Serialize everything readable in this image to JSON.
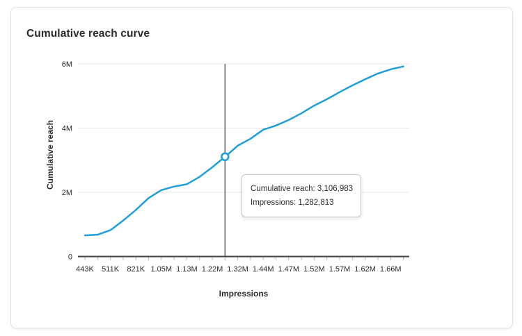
{
  "card": {
    "title": "Cumulative reach curve"
  },
  "tooltip": {
    "lines": [
      "Cumulative reach: 3,106,983",
      "Impressions: 1,282,813"
    ]
  },
  "colors": {
    "line": "#1f9ed9",
    "marker_fill": "#ffffff",
    "crosshair": "#58585b",
    "axis": "#404040",
    "gridline": "#e8e8e8",
    "tick_mark": "#bdbdbd",
    "text": "#2b2b2b",
    "card_border": "#e2e2e2",
    "tooltip_border": "#c9c9c9"
  },
  "chart_data": {
    "type": "line",
    "title": "Cumulative reach curve",
    "xlabel": "Impressions",
    "ylabel": "Cumulative reach",
    "x_tick_labels": [
      "443K",
      "511K",
      "821K",
      "1.05M",
      "1.13M",
      "1.22M",
      "1.32M",
      "1.44M",
      "1.47M",
      "1.52M",
      "1.57M",
      "1.62M",
      "1.66M"
    ],
    "x_labels_at_even_point_indices": true,
    "y_tick_labels": [
      "0",
      "2M",
      "4M",
      "6M"
    ],
    "y_tick_values_millions": [
      0,
      2,
      4,
      6
    ],
    "y_max_millions": 6,
    "ylim": [
      0,
      6000000
    ],
    "grid": "horizontal",
    "legend": "none",
    "reach_millions": [
      0.66,
      0.68,
      0.82,
      1.12,
      1.45,
      1.82,
      2.07,
      2.18,
      2.25,
      2.48,
      2.78,
      3.107,
      3.45,
      3.67,
      3.95,
      4.08,
      4.25,
      4.46,
      4.7,
      4.9,
      5.12,
      5.33,
      5.52,
      5.7,
      5.83,
      5.92
    ],
    "highlight": {
      "index": 11,
      "cumulative_reach": 3106983,
      "impressions": 1282813,
      "cumulative_reach_display": "3,106,983",
      "impressions_display": "1,282,813"
    }
  }
}
